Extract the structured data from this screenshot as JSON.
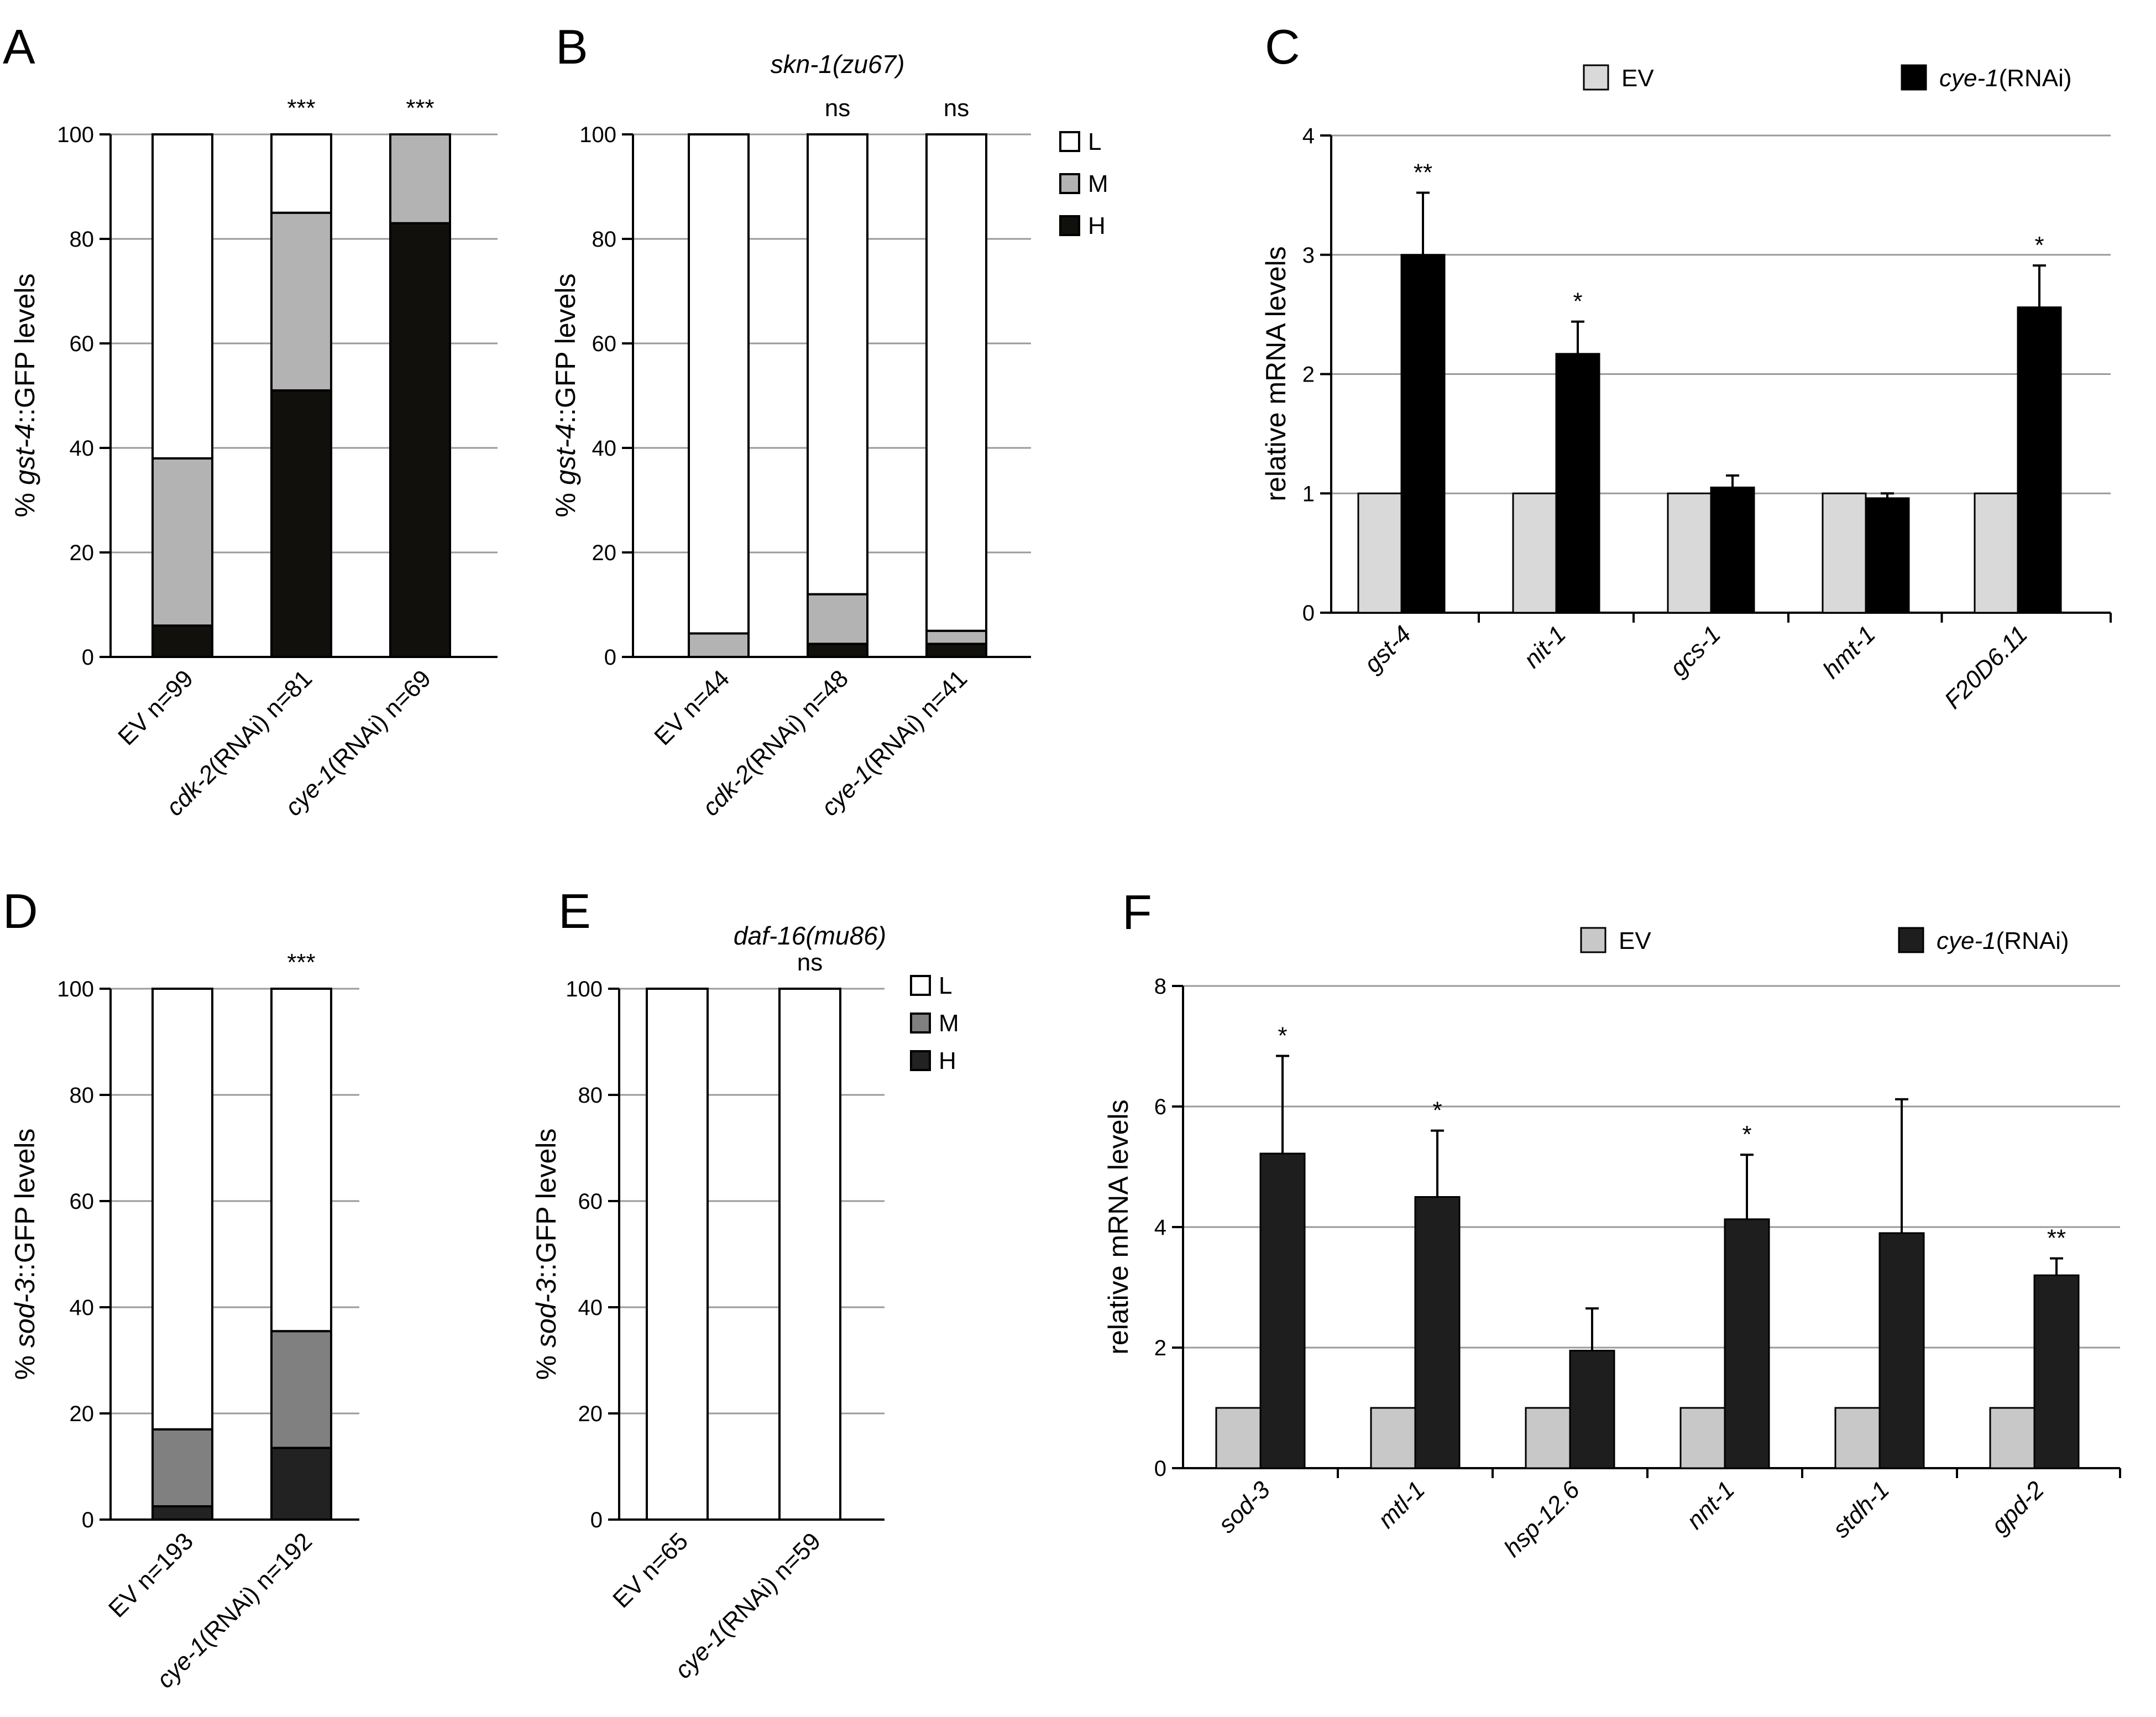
{
  "chart_data": [
    {
      "panel": "A",
      "type": "bar",
      "stacked": true,
      "title": "",
      "categories": [
        {
          "italic": "",
          "rest": "EV n=99"
        },
        {
          "italic": "cdk-2",
          "rest": "(RNAi) n=81"
        },
        {
          "italic": "cye-1",
          "rest": "(RNAi) n=69"
        }
      ],
      "series": [
        {
          "name": "H",
          "color": "#12100d",
          "values": [
            6,
            51,
            83
          ]
        },
        {
          "name": "M",
          "color": "#b3b3b3",
          "values": [
            32,
            34,
            17
          ]
        },
        {
          "name": "L",
          "color": "#ffffff",
          "values": [
            62,
            15,
            0
          ]
        }
      ],
      "significance": [
        "",
        "***",
        "***"
      ],
      "ylabel": {
        "pre": "% ",
        "italic": "gst-4",
        "post": "::GFP levels"
      },
      "ylim": [
        0,
        100
      ],
      "yticks": [
        "0",
        "20",
        "40",
        "60",
        "80",
        "100"
      ],
      "grid": true,
      "legend": null
    },
    {
      "panel": "B",
      "type": "bar",
      "stacked": true,
      "title": "skn-1(zu67)",
      "categories": [
        {
          "italic": "",
          "rest": "EV n=44"
        },
        {
          "italic": "cdk-2",
          "rest": "(RNAi) n=48"
        },
        {
          "italic": "cye-1",
          "rest": "(RNAi) n=41"
        }
      ],
      "series": [
        {
          "name": "H",
          "color": "#12100d",
          "values": [
            0,
            2.5,
            2.5
          ]
        },
        {
          "name": "M",
          "color": "#b3b3b3",
          "values": [
            4.5,
            9.5,
            2.5
          ]
        },
        {
          "name": "L",
          "color": "#ffffff",
          "values": [
            95.5,
            88,
            95
          ]
        }
      ],
      "significance": [
        "",
        "ns",
        "ns"
      ],
      "ylabel": {
        "pre": "% ",
        "italic": "gst-4",
        "post": "::GFP levels"
      },
      "ylim": [
        0,
        100
      ],
      "yticks": [
        "0",
        "20",
        "40",
        "60",
        "80",
        "100"
      ],
      "grid": true,
      "legend": {
        "placement": "top-right",
        "entries": [
          "L",
          "M",
          "H"
        ]
      }
    },
    {
      "panel": "C",
      "type": "bar",
      "stacked": false,
      "title": "",
      "categories": [
        "gst-4",
        "nit-1",
        "gcs-1",
        "hmt-1",
        "F20D6.11"
      ],
      "series": [
        {
          "name": "EV",
          "name_italic": "",
          "name_rest": "EV",
          "color": "#d9d9d9",
          "values": [
            1,
            1,
            1,
            1,
            1
          ],
          "errors": null
        },
        {
          "name": "cye-1(RNAi)",
          "name_italic": "cye-1",
          "name_rest": "(RNAi)",
          "color": "#000000",
          "values": [
            3.0,
            2.17,
            1.05,
            0.96,
            2.56
          ],
          "errors": [
            0.52,
            0.27,
            0.1,
            0.04,
            0.35
          ]
        }
      ],
      "significance": [
        "**",
        "*",
        "",
        "",
        "*"
      ],
      "ylabel": "relative mRNA levels",
      "ylim": [
        0,
        4
      ],
      "yticks": [
        "0",
        "1",
        "2",
        "3",
        "4"
      ],
      "grid": true,
      "legend": {
        "placement": "top"
      }
    },
    {
      "panel": "D",
      "type": "bar",
      "stacked": true,
      "title": "",
      "categories": [
        {
          "italic": "",
          "rest": "EV n=193"
        },
        {
          "italic": "cye-1",
          "rest": "(RNAi) n=192"
        }
      ],
      "series": [
        {
          "name": "H",
          "color": "#222222",
          "values": [
            2.5,
            13.5
          ]
        },
        {
          "name": "M",
          "color": "#808080",
          "values": [
            14.5,
            22
          ]
        },
        {
          "name": "L",
          "color": "#ffffff",
          "values": [
            83,
            64.5
          ]
        }
      ],
      "significance": [
        "",
        "***"
      ],
      "ylabel": {
        "pre": "% ",
        "italic": "sod-3",
        "post": "::GFP levels"
      },
      "ylim": [
        0,
        100
      ],
      "yticks": [
        "0",
        "20",
        "40",
        "60",
        "80",
        "100"
      ],
      "grid": true,
      "legend": null
    },
    {
      "panel": "E",
      "type": "bar",
      "stacked": true,
      "title": "daf-16(mu86)",
      "categories": [
        {
          "italic": "",
          "rest": "EV n=65"
        },
        {
          "italic": "cye-1",
          "rest": "(RNAi) n=59"
        }
      ],
      "series": [
        {
          "name": "H",
          "color": "#222222",
          "values": [
            0,
            0
          ]
        },
        {
          "name": "M",
          "color": "#808080",
          "values": [
            0,
            0
          ]
        },
        {
          "name": "L",
          "color": "#ffffff",
          "values": [
            100,
            100
          ]
        }
      ],
      "significance": [
        "",
        "ns"
      ],
      "ylabel": {
        "pre": "% ",
        "italic": "sod-3",
        "post": "::GFP levels"
      },
      "ylim": [
        0,
        100
      ],
      "yticks": [
        "0",
        "20",
        "40",
        "60",
        "80",
        "100"
      ],
      "grid": true,
      "legend": {
        "placement": "top-right",
        "entries": [
          "L",
          "M",
          "H"
        ]
      }
    },
    {
      "panel": "F",
      "type": "bar",
      "stacked": false,
      "title": "",
      "categories": [
        "sod-3",
        "mtl-1",
        "hsp-12.6",
        "nnt-1",
        "stdh-1",
        "gpd-2"
      ],
      "series": [
        {
          "name": "EV",
          "name_italic": "",
          "name_rest": "EV",
          "color": "#c8c8c8",
          "values": [
            1,
            1,
            1,
            1,
            1,
            1
          ],
          "errors": null
        },
        {
          "name": "cye-1(RNAi)",
          "name_italic": "cye-1",
          "name_rest": "(RNAi)",
          "color": "#1e1e1e",
          "values": [
            5.22,
            4.5,
            1.95,
            4.13,
            3.9,
            3.2
          ],
          "errors": [
            1.62,
            1.1,
            0.7,
            1.07,
            2.22,
            0.28
          ]
        }
      ],
      "significance": [
        "*",
        "*",
        "",
        "*",
        "",
        "**"
      ],
      "ylabel": "relative mRNA levels",
      "ylim": [
        0,
        8
      ],
      "yticks": [
        "0",
        "2",
        "4",
        "6",
        "8"
      ],
      "grid": true,
      "legend": {
        "placement": "top"
      }
    }
  ]
}
